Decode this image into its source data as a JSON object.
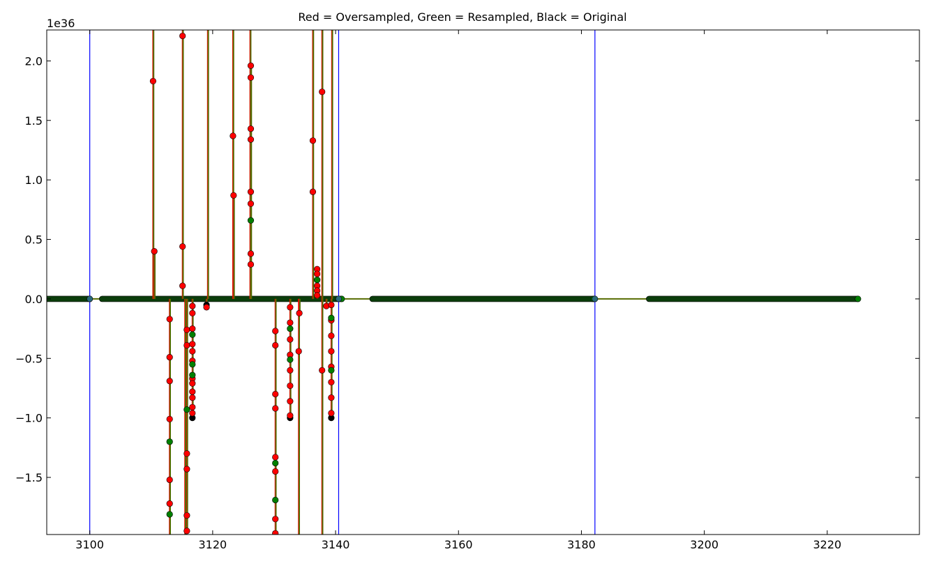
{
  "chart_data": {
    "type": "line",
    "title": "Red = Oversampled, Green = Resampled, Black = Original",
    "offset_label": "1e36",
    "xlim": [
      3093,
      3235
    ],
    "ylim": [
      -1.98,
      2.26
    ],
    "x_ticks": [
      3100,
      3120,
      3140,
      3160,
      3180,
      3200,
      3220
    ],
    "x_tick_labels": [
      "3100",
      "3120",
      "3140",
      "3160",
      "3180",
      "3200",
      "3220"
    ],
    "y_ticks": [
      2.0,
      1.5,
      1.0,
      0.5,
      0.0,
      -0.5,
      -1.0,
      -1.5
    ],
    "y_tick_labels": [
      "2.0",
      "1.5",
      "1.0",
      "0.5",
      "0.0",
      "−0.5",
      "−1.0",
      "−1.5"
    ],
    "vertical_lines": [
      3100,
      3140.5,
      3182.2
    ],
    "colors": {
      "oversampled": "#ff0000",
      "resampled": "#008000",
      "original": "#000000",
      "vertical_line": "#0000ff",
      "line_blend": "#556b00"
    },
    "baseline_segments": [
      {
        "x_start": 3093,
        "x_end": 3100
      },
      {
        "x_start": 3102,
        "x_end": 3141
      },
      {
        "x_start": 3146,
        "x_end": 3182
      },
      {
        "x_start": 3191,
        "x_end": 3225
      }
    ],
    "series": [
      {
        "name": "Oversampled",
        "color": "#ff0000",
        "points": [
          [
            3110.3,
            1.83
          ],
          [
            3110.5,
            0.4
          ],
          [
            3113.0,
            -0.17
          ],
          [
            3113.0,
            -0.49
          ],
          [
            3113.0,
            -0.69
          ],
          [
            3113.0,
            -1.01
          ],
          [
            3113.0,
            -1.52
          ],
          [
            3113.0,
            -1.72
          ],
          [
            3115.1,
            2.21
          ],
          [
            3115.1,
            0.44
          ],
          [
            3115.1,
            0.11
          ],
          [
            3115.8,
            -0.26
          ],
          [
            3115.8,
            -0.39
          ],
          [
            3115.8,
            -1.3
          ],
          [
            3115.8,
            -1.43
          ],
          [
            3115.8,
            -1.82
          ],
          [
            3115.8,
            -1.95
          ],
          [
            3116.7,
            -0.06
          ],
          [
            3116.7,
            -0.12
          ],
          [
            3116.7,
            -0.25
          ],
          [
            3116.7,
            -0.38
          ],
          [
            3116.7,
            -0.44
          ],
          [
            3116.7,
            -0.52
          ],
          [
            3116.7,
            -0.67
          ],
          [
            3116.7,
            -0.71
          ],
          [
            3116.7,
            -0.78
          ],
          [
            3116.7,
            -0.83
          ],
          [
            3116.7,
            -0.91
          ],
          [
            3116.7,
            -0.96
          ],
          [
            3119.0,
            -0.07
          ],
          [
            3123.3,
            1.37
          ],
          [
            3123.4,
            0.87
          ],
          [
            3126.2,
            1.96
          ],
          [
            3126.2,
            1.86
          ],
          [
            3126.2,
            1.43
          ],
          [
            3126.2,
            1.34
          ],
          [
            3126.2,
            0.9
          ],
          [
            3126.2,
            0.8
          ],
          [
            3126.2,
            0.38
          ],
          [
            3126.2,
            0.29
          ],
          [
            3130.2,
            -0.27
          ],
          [
            3130.2,
            -0.39
          ],
          [
            3130.2,
            -0.8
          ],
          [
            3130.2,
            -0.92
          ],
          [
            3130.2,
            -1.33
          ],
          [
            3130.2,
            -1.45
          ],
          [
            3130.2,
            -1.85
          ],
          [
            3130.2,
            -1.97
          ],
          [
            3132.6,
            -0.07
          ],
          [
            3132.6,
            -0.2
          ],
          [
            3132.6,
            -0.34
          ],
          [
            3132.6,
            -0.47
          ],
          [
            3132.6,
            -0.6
          ],
          [
            3132.6,
            -0.73
          ],
          [
            3132.6,
            -0.86
          ],
          [
            3132.6,
            -0.98
          ],
          [
            3134.0,
            -0.44
          ],
          [
            3134.1,
            -0.12
          ],
          [
            3136.3,
            1.33
          ],
          [
            3136.3,
            0.9
          ],
          [
            3137.0,
            0.25
          ],
          [
            3137.0,
            0.21
          ],
          [
            3137.0,
            0.16
          ],
          [
            3137.0,
            0.11
          ],
          [
            3137.0,
            0.07
          ],
          [
            3137.0,
            0.03
          ],
          [
            3137.8,
            1.74
          ],
          [
            3137.8,
            -0.6
          ],
          [
            3138.5,
            -0.06
          ],
          [
            3139.3,
            -0.05
          ],
          [
            3139.3,
            -0.18
          ],
          [
            3139.3,
            -0.31
          ],
          [
            3139.3,
            -0.44
          ],
          [
            3139.3,
            -0.57
          ],
          [
            3139.3,
            -0.7
          ],
          [
            3139.3,
            -0.83
          ],
          [
            3139.3,
            -0.96
          ]
        ]
      },
      {
        "name": "Resampled",
        "color": "#008000",
        "points": [
          [
            3113.0,
            -1.2
          ],
          [
            3113.0,
            -1.81
          ],
          [
            3115.8,
            -0.93
          ],
          [
            3116.7,
            -0.3
          ],
          [
            3116.7,
            -0.55
          ],
          [
            3116.7,
            -0.64
          ],
          [
            3126.2,
            0.66
          ],
          [
            3130.2,
            -1.38
          ],
          [
            3130.2,
            -1.69
          ],
          [
            3132.6,
            -0.25
          ],
          [
            3132.6,
            -0.51
          ],
          [
            3137.0,
            0.16
          ],
          [
            3139.3,
            -0.16
          ],
          [
            3139.3,
            -0.6
          ]
        ]
      },
      {
        "name": "Original",
        "color": "#000000",
        "points": [
          [
            3116.7,
            -1.0
          ],
          [
            3119.0,
            -0.05
          ],
          [
            3132.6,
            -1.0
          ],
          [
            3139.3,
            -1.0
          ]
        ]
      }
    ]
  }
}
